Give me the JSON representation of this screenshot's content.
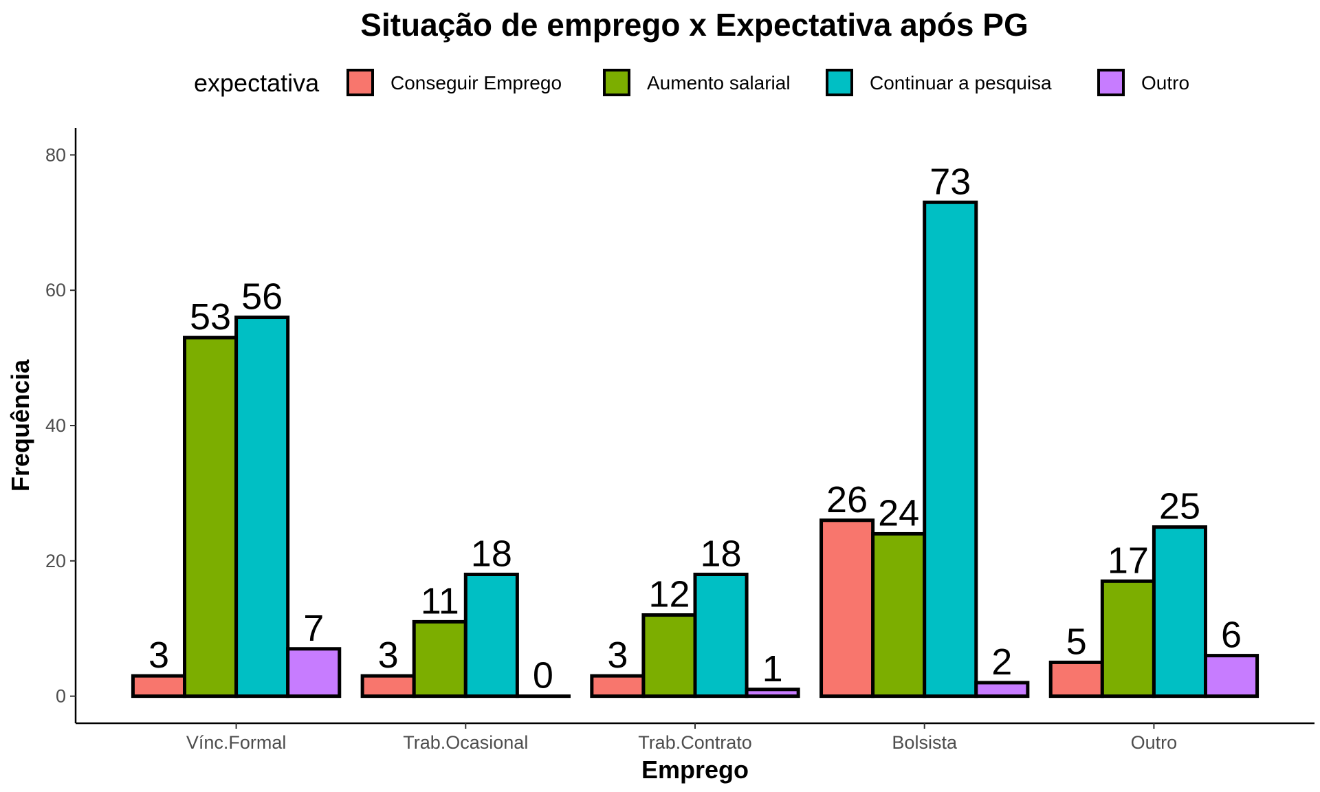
{
  "chart_data": {
    "type": "bar",
    "title": "Situação de emprego x Expectativa após PG",
    "xlabel": "Emprego",
    "ylabel": "Frequência",
    "legend_title": "expectativa",
    "legend_position": "top",
    "grid": false,
    "ylim": [
      -4,
      84
    ],
    "yticks": [
      0,
      20,
      40,
      60,
      80
    ],
    "categories": [
      "Vínc.Formal",
      "Trab.Ocasional",
      "Trab.Contrato",
      "Bolsista",
      "Outro"
    ],
    "series": [
      {
        "name": "Conseguir Emprego",
        "color": "#F8766D",
        "values": [
          3,
          3,
          3,
          26,
          5
        ]
      },
      {
        "name": "Aumento salarial",
        "color": "#7CAE00",
        "values": [
          53,
          11,
          12,
          24,
          17
        ]
      },
      {
        "name": "Continuar a pesquisa",
        "color": "#00BFC4",
        "values": [
          56,
          18,
          18,
          73,
          25
        ]
      },
      {
        "name": "Outro",
        "color": "#C77CFF",
        "values": [
          7,
          0,
          1,
          2,
          6
        ]
      }
    ]
  }
}
